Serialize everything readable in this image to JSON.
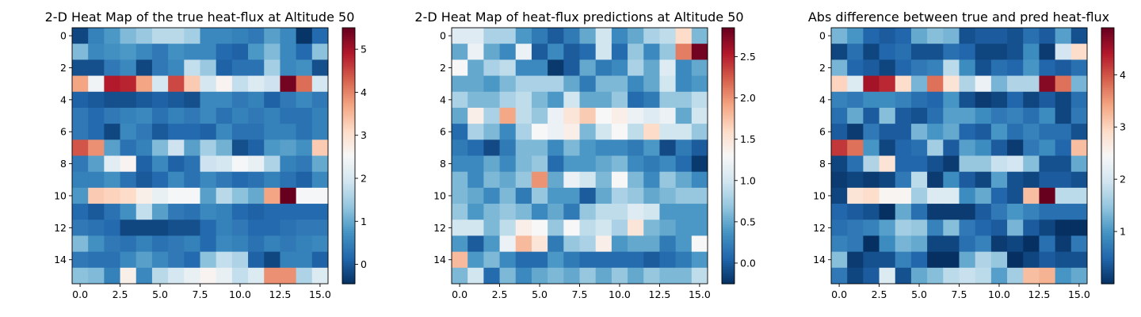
{
  "chart_data": [
    {
      "type": "heatmap",
      "title": "2-D Heat Map of the true heat-flux at Altitude 50",
      "xlabel": "",
      "ylabel": "",
      "colormap": "RdBu_r",
      "rows": 16,
      "cols": 16,
      "x_ticks": [
        "0.0",
        "2.5",
        "5.0",
        "7.5",
        "10.0",
        "12.5",
        "15.0"
      ],
      "x_tick_values": [
        0,
        2.5,
        5,
        7.5,
        10,
        12.5,
        15
      ],
      "y_ticks": [
        "0",
        "2",
        "4",
        "6",
        "8",
        "10",
        "12",
        "14"
      ],
      "y_tick_values": [
        0,
        2,
        4,
        6,
        8,
        10,
        12,
        14
      ],
      "colorbar_range": [
        -0.45,
        5.5
      ],
      "colorbar_ticks": [
        "0",
        "1",
        "2",
        "3",
        "4",
        "5"
      ],
      "colorbar_tick_values": [
        0,
        1,
        2,
        3,
        4,
        5
      ],
      "values": [
        [
          -0.2,
          0.5,
          0.8,
          1.2,
          1.4,
          1.7,
          1.7,
          1.5,
          0.6,
          0.6,
          0.5,
          0.4,
          0.9,
          0.6,
          -0.4,
          0.2
        ],
        [
          1.2,
          0.6,
          0.7,
          0.8,
          0.6,
          0.4,
          0.7,
          0.6,
          0.6,
          0.2,
          0.1,
          0.8,
          1.2,
          0.6,
          0.2,
          1.3
        ],
        [
          -0.1,
          -0.1,
          0.4,
          0.6,
          -0.2,
          0.4,
          0.6,
          1.8,
          1.4,
          0.1,
          0.3,
          0.3,
          1.5,
          0.6,
          0.7,
          -0.1
        ],
        [
          3.7,
          2.4,
          4.9,
          4.8,
          3.7,
          2.0,
          4.5,
          3.3,
          2.0,
          2.6,
          1.8,
          2.1,
          1.9,
          5.4,
          4.2,
          2.0
        ],
        [
          0.1,
          0.0,
          -0.1,
          -0.1,
          0.0,
          0.1,
          0.0,
          -0.1,
          0.6,
          0.6,
          0.4,
          0.5,
          0.1,
          0.4,
          0.6,
          0.4
        ],
        [
          0.4,
          0.2,
          0.4,
          0.5,
          0.6,
          0.3,
          0.5,
          0.4,
          0.6,
          0.3,
          0.5,
          0.4,
          0.5,
          0.3,
          0.3,
          0.5
        ],
        [
          0.4,
          0.2,
          -0.2,
          0.6,
          0.4,
          0.0,
          0.2,
          0.2,
          0.1,
          0.6,
          0.3,
          0.3,
          0.5,
          0.5,
          0.3,
          0.5
        ],
        [
          4.4,
          3.9,
          0.9,
          0.3,
          0.5,
          1.2,
          1.9,
          0.9,
          1.5,
          1.1,
          -0.1,
          0.1,
          0.8,
          0.9,
          0.7,
          3.3
        ],
        [
          0.4,
          0.9,
          2.2,
          2.6,
          0.1,
          0.6,
          0.1,
          0.3,
          1.9,
          2.0,
          2.5,
          2.3,
          1.6,
          0.5,
          0.4,
          1.0
        ],
        [
          0.5,
          0.5,
          0.7,
          0.3,
          0.0,
          0.2,
          0.6,
          0.3,
          0.6,
          0.4,
          0.2,
          0.3,
          0.5,
          0.3,
          0.1,
          0.6
        ],
        [
          0.8,
          3.3,
          3.2,
          3.1,
          2.7,
          2.3,
          2.5,
          2.5,
          0.9,
          1.7,
          1.3,
          1.0,
          3.7,
          5.5,
          2.5,
          2.5
        ],
        [
          0.2,
          0.0,
          0.3,
          0.7,
          1.8,
          0.9,
          0.4,
          0.3,
          0.6,
          0.5,
          0.2,
          0.1,
          0.2,
          0.2,
          0.2,
          0.2
        ],
        [
          0.4,
          0.3,
          0.2,
          -0.2,
          -0.2,
          -0.2,
          -0.1,
          -0.1,
          0.2,
          0.5,
          0.4,
          0.2,
          0.2,
          0.3,
          0.4,
          0.4
        ],
        [
          1.2,
          0.7,
          0.4,
          0.3,
          0.5,
          0.3,
          0.4,
          0.5,
          0.2,
          0.6,
          0.5,
          0.3,
          0.5,
          0.4,
          0.5,
          0.6
        ],
        [
          0.4,
          0.3,
          0.3,
          0.6,
          0.9,
          0.6,
          0.4,
          0.2,
          1.3,
          1.8,
          1.6,
          0.1,
          -0.2,
          0.5,
          0.5,
          0.1
        ],
        [
          1.3,
          1.2,
          0.5,
          2.7,
          0.6,
          1.7,
          2.0,
          2.3,
          2.6,
          2.3,
          1.8,
          2.1,
          3.9,
          3.9,
          1.6,
          2.1
        ]
      ]
    },
    {
      "type": "heatmap",
      "title": "2-D Heat Map of heat-flux predictions at Altitude 50",
      "xlabel": "",
      "ylabel": "",
      "colormap": "RdBu_r",
      "rows": 16,
      "cols": 16,
      "x_ticks": [
        "0.0",
        "2.5",
        "5.0",
        "7.5",
        "10.0",
        "12.5",
        "15.0"
      ],
      "x_tick_values": [
        0,
        2.5,
        5,
        7.5,
        10,
        12.5,
        15
      ],
      "y_ticks": [
        "0",
        "2",
        "4",
        "6",
        "8",
        "10",
        "12",
        "14"
      ],
      "y_tick_values": [
        0,
        2,
        4,
        6,
        8,
        10,
        12,
        14
      ],
      "colorbar_range": [
        -0.25,
        2.85
      ],
      "colorbar_ticks": [
        "0.0",
        "0.5",
        "1.0",
        "1.5",
        "2.0",
        "2.5"
      ],
      "colorbar_tick_values": [
        0,
        0.5,
        1,
        1.5,
        2,
        2.5
      ],
      "values": [
        [
          1.1,
          1.1,
          0.8,
          0.8,
          0.4,
          0.2,
          0.0,
          0.2,
          0.5,
          1.0,
          0.3,
          0.5,
          0.8,
          0.9,
          1.6,
          0.6
        ],
        [
          0.5,
          1.2,
          0.5,
          0.3,
          1.2,
          0.0,
          0.3,
          0.0,
          0.1,
          1.0,
          0.1,
          0.7,
          0.3,
          0.7,
          2.1,
          2.8
        ],
        [
          1.3,
          0.5,
          0.8,
          0.9,
          0.3,
          0.3,
          -0.2,
          0.0,
          0.5,
          0.2,
          0.3,
          0.8,
          0.5,
          1.1,
          0.3,
          0.5
        ],
        [
          0.5,
          0.5,
          0.4,
          0.6,
          0.8,
          0.8,
          0.8,
          0.5,
          0.2,
          0.6,
          0.6,
          0.3,
          0.5,
          1.0,
          0.3,
          0.4
        ],
        [
          0.8,
          0.6,
          0.6,
          0.8,
          0.9,
          0.6,
          0.4,
          1.0,
          0.5,
          0.5,
          0.7,
          0.1,
          0.2,
          0.7,
          0.7,
          0.9
        ],
        [
          0.5,
          1.4,
          0.8,
          1.9,
          0.9,
          0.7,
          1.2,
          1.5,
          1.7,
          1.3,
          1.4,
          1.2,
          1.1,
          1.2,
          0.5,
          1.0
        ],
        [
          0.1,
          0.8,
          0.6,
          0.3,
          0.8,
          1.3,
          1.2,
          1.4,
          0.6,
          1.0,
          1.3,
          0.9,
          1.6,
          1.0,
          1.0,
          0.7
        ],
        [
          0.2,
          0.1,
          -0.1,
          0.2,
          0.6,
          0.6,
          0.3,
          0.6,
          0.4,
          0.3,
          0.3,
          0.2,
          0.4,
          -0.1,
          0.2,
          0.0
        ],
        [
          0.3,
          0.3,
          0.5,
          0.3,
          0.6,
          0.7,
          0.1,
          0.4,
          0.4,
          0.5,
          0.6,
          0.3,
          0.2,
          0.3,
          0.1,
          -0.2
        ],
        [
          0.6,
          0.3,
          0.6,
          0.5,
          0.7,
          2.0,
          0.5,
          1.2,
          1.0,
          0.6,
          1.3,
          0.6,
          0.3,
          0.7,
          0.5,
          0.3
        ],
        [
          0.6,
          0.5,
          0.3,
          0.6,
          0.2,
          0.7,
          0.4,
          0.4,
          0.0,
          0.5,
          0.8,
          0.7,
          0.5,
          0.6,
          0.7,
          0.7
        ],
        [
          0.7,
          0.4,
          0.6,
          0.7,
          0.6,
          0.3,
          0.5,
          0.2,
          0.7,
          0.9,
          0.9,
          1.1,
          1.0,
          0.4,
          0.4,
          0.4
        ],
        [
          1.0,
          1.0,
          0.6,
          0.9,
          1.4,
          1.3,
          0.7,
          1.3,
          0.9,
          1.0,
          0.8,
          1.5,
          0.6,
          0.5,
          0.4,
          0.4
        ],
        [
          0.4,
          0.0,
          0.4,
          1.2,
          1.8,
          1.5,
          0.2,
          0.7,
          0.8,
          1.4,
          0.4,
          0.5,
          0.5,
          0.2,
          0.4,
          1.3
        ],
        [
          1.8,
          0.4,
          0.6,
          0.3,
          0.1,
          0.1,
          0.4,
          0.2,
          0.1,
          0.1,
          0.1,
          0.1,
          0.0,
          0.1,
          0.2,
          0.4
        ],
        [
          0.6,
          1.0,
          0.1,
          0.6,
          0.3,
          0.5,
          0.6,
          0.5,
          0.7,
          0.5,
          0.7,
          0.5,
          0.7,
          0.6,
          0.6,
          0.9
        ]
      ]
    },
    {
      "type": "heatmap",
      "title": "Abs difference between true and pred heat-flux",
      "xlabel": "",
      "ylabel": "",
      "colormap": "RdBu_r",
      "rows": 16,
      "cols": 16,
      "x_ticks": [
        "0.0",
        "2.5",
        "5.0",
        "7.5",
        "10.0",
        "12.5",
        "15.0"
      ],
      "x_tick_values": [
        0,
        2.5,
        5,
        7.5,
        10,
        12.5,
        15
      ],
      "y_ticks": [
        "0",
        "2",
        "4",
        "6",
        "8",
        "10",
        "12",
        "14"
      ],
      "y_tick_values": [
        0,
        2,
        4,
        6,
        8,
        10,
        12,
        14
      ],
      "colorbar_range": [
        0.0,
        4.9
      ],
      "colorbar_ticks": [
        "1",
        "2",
        "3",
        "4"
      ],
      "colorbar_tick_values": [
        1,
        2,
        3,
        4
      ],
      "values": [
        [
          1.3,
          1.0,
          0.5,
          0.4,
          0.5,
          1.2,
          1.4,
          1.3,
          0.3,
          0.4,
          0.4,
          0.3,
          0.6,
          0.4,
          1.1,
          0.3
        ],
        [
          0.2,
          0.6,
          0.2,
          0.5,
          0.6,
          0.3,
          0.3,
          0.6,
          0.5,
          0.2,
          0.2,
          0.3,
          0.9,
          0.1,
          2.0,
          2.9
        ],
        [
          1.3,
          0.5,
          0.4,
          0.2,
          0.5,
          0.7,
          0.8,
          1.8,
          0.9,
          0.3,
          0.6,
          0.5,
          1.0,
          0.5,
          0.4,
          0.6
        ],
        [
          3.0,
          2.1,
          4.5,
          4.3,
          2.9,
          1.3,
          3.8,
          2.8,
          1.7,
          2.3,
          1.3,
          1.7,
          1.7,
          4.7,
          3.8,
          1.3
        ],
        [
          0.8,
          0.7,
          0.9,
          0.9,
          0.8,
          0.6,
          0.5,
          1.0,
          0.3,
          0.1,
          0.2,
          0.5,
          0.2,
          0.4,
          0.2,
          0.6
        ],
        [
          0.6,
          1.2,
          0.4,
          1.4,
          0.4,
          0.3,
          0.6,
          1.1,
          1.1,
          0.9,
          0.7,
          0.8,
          0.6,
          0.9,
          0.2,
          0.7
        ],
        [
          0.4,
          0.1,
          0.7,
          0.4,
          0.4,
          1.3,
          1.0,
          1.2,
          0.5,
          0.4,
          1.0,
          0.6,
          0.8,
          0.6,
          0.6,
          0.3
        ],
        [
          4.2,
          3.8,
          1.0,
          0.2,
          0.5,
          0.6,
          1.6,
          0.4,
          1.1,
          0.9,
          0.4,
          0.1,
          0.7,
          0.9,
          0.5,
          3.2
        ],
        [
          0.2,
          0.6,
          1.7,
          2.8,
          0.5,
          0.5,
          0.3,
          0.1,
          1.5,
          1.5,
          1.9,
          2.0,
          1.4,
          0.3,
          0.3,
          1.2
        ],
        [
          0.1,
          0.2,
          0.1,
          0.2,
          0.7,
          1.8,
          0.1,
          0.9,
          0.4,
          0.2,
          1.1,
          0.3,
          0.2,
          0.4,
          0.4,
          0.3
        ],
        [
          0.2,
          2.8,
          2.9,
          2.5,
          2.5,
          1.6,
          2.1,
          2.1,
          0.9,
          1.2,
          0.5,
          0.3,
          3.2,
          4.9,
          1.8,
          1.8
        ],
        [
          0.5,
          0.4,
          0.3,
          0.0,
          1.2,
          0.6,
          0.1,
          0.1,
          0.1,
          0.4,
          0.7,
          1.0,
          0.8,
          0.6,
          0.6,
          0.6
        ],
        [
          0.6,
          0.7,
          0.8,
          1.1,
          1.6,
          1.5,
          0.8,
          1.4,
          0.7,
          0.5,
          0.4,
          1.3,
          0.4,
          0.2,
          0.0,
          0.0
        ],
        [
          0.8,
          0.7,
          0.0,
          0.9,
          1.3,
          1.2,
          0.2,
          0.2,
          0.6,
          0.8,
          0.1,
          0.2,
          0.0,
          0.6,
          0.1,
          0.7
        ],
        [
          1.4,
          0.1,
          0.3,
          0.3,
          0.8,
          0.5,
          0.0,
          0.0,
          1.2,
          1.7,
          1.5,
          0.0,
          0.2,
          0.4,
          0.3,
          0.3
        ],
        [
          0.7,
          0.2,
          0.4,
          2.1,
          0.3,
          1.2,
          1.4,
          1.8,
          1.9,
          1.8,
          1.1,
          1.6,
          3.2,
          3.3,
          1.0,
          1.2
        ]
      ]
    }
  ]
}
